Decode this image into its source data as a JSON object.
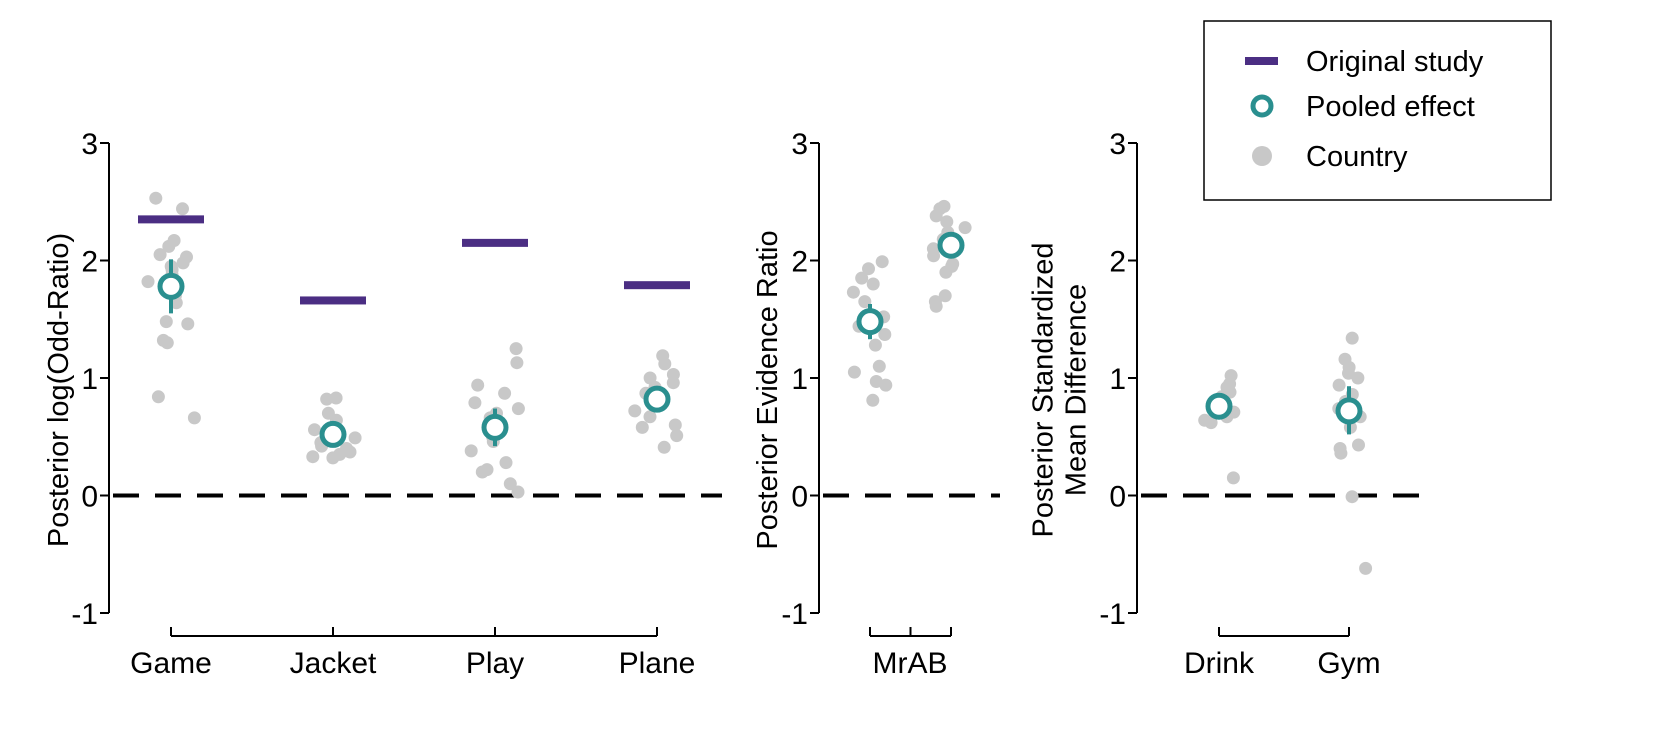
{
  "colors": {
    "original_study": "#4b2e83",
    "pooled_effect": "#2a8f8f",
    "country": "#c8c8c8",
    "axis": "#000000"
  },
  "legend": {
    "items": [
      {
        "label": "Original study",
        "marker": "bar"
      },
      {
        "label": "Pooled effect",
        "marker": "ring"
      },
      {
        "label": "Country",
        "marker": "dot"
      }
    ]
  },
  "chart_data": [
    {
      "type": "scatter",
      "ylabel": [
        "Posterior log(Odd-Ratio)"
      ],
      "ylim": [
        -1,
        3
      ],
      "yticks": [
        -1,
        0,
        1,
        2,
        3
      ],
      "reference_line": 0,
      "categories": [
        "Game",
        "Jacket",
        "Play",
        "Plane"
      ],
      "original_study": [
        2.35,
        1.66,
        2.15,
        1.79
      ],
      "pooled_effect": [
        {
          "mean": 1.78,
          "lower": 1.55,
          "upper": 2.01
        },
        {
          "mean": 0.52,
          "lower": 0.45,
          "upper": 0.6
        },
        {
          "mean": 0.58,
          "lower": 0.42,
          "upper": 0.74
        },
        {
          "mean": 0.82,
          "lower": 0.74,
          "upper": 0.9
        }
      ],
      "country": [
        [
          2.53,
          2.44,
          2.17,
          2.12,
          2.05,
          2.03,
          1.98,
          1.95,
          1.92,
          1.88,
          1.82,
          1.7,
          1.64,
          1.48,
          1.46,
          1.32,
          1.3,
          0.84,
          0.66
        ],
        [
          0.83,
          0.82,
          0.7,
          0.64,
          0.56,
          0.52,
          0.49,
          0.45,
          0.42,
          0.4,
          0.37,
          0.35,
          0.33,
          0.32
        ],
        [
          1.25,
          1.13,
          0.94,
          0.87,
          0.79,
          0.74,
          0.7,
          0.66,
          0.6,
          0.5,
          0.46,
          0.38,
          0.28,
          0.22,
          0.2,
          0.1,
          0.03
        ],
        [
          1.19,
          1.12,
          1.03,
          1.0,
          0.96,
          0.92,
          0.87,
          0.8,
          0.72,
          0.67,
          0.6,
          0.58,
          0.51,
          0.41
        ]
      ]
    },
    {
      "type": "scatter",
      "ylabel": [
        "Posterior Evidence Ratio"
      ],
      "ylim": [
        -1,
        3
      ],
      "yticks": [
        -1,
        0,
        1,
        2,
        3
      ],
      "reference_line": 0,
      "categories": [
        "MrAB"
      ],
      "bracket_points": 2,
      "pooled_effect": [
        {
          "mean": 1.48,
          "lower": 1.33,
          "upper": 1.63
        },
        {
          "mean": 2.13,
          "lower": 2.02,
          "upper": 2.24
        }
      ],
      "country": [
        [
          1.99,
          1.93,
          1.85,
          1.8,
          1.73,
          1.65,
          1.52,
          1.44,
          1.37,
          1.28,
          1.1,
          1.05,
          0.97,
          0.94,
          0.81
        ],
        [
          2.46,
          2.44,
          2.38,
          2.33,
          2.28,
          2.24,
          2.18,
          2.1,
          2.04,
          1.97,
          1.95,
          1.9,
          1.7,
          1.65,
          1.61
        ]
      ]
    },
    {
      "type": "scatter",
      "ylabel": [
        "Posterior Standardized",
        "Mean Difference"
      ],
      "ylim": [
        -1,
        3
      ],
      "yticks": [
        -1,
        0,
        1,
        2,
        3
      ],
      "reference_line": 0,
      "categories": [
        "Drink",
        "Gym"
      ],
      "pooled_effect": [
        {
          "mean": 0.76,
          "lower": 0.69,
          "upper": 0.83
        },
        {
          "mean": 0.72,
          "lower": 0.52,
          "upper": 0.93
        }
      ],
      "country": [
        [
          1.02,
          0.95,
          0.92,
          0.88,
          0.84,
          0.8,
          0.78,
          0.75,
          0.71,
          0.67,
          0.64,
          0.62,
          0.15
        ],
        [
          1.34,
          1.16,
          1.09,
          1.04,
          1.0,
          0.94,
          0.86,
          0.8,
          0.74,
          0.67,
          0.58,
          0.43,
          0.4,
          0.36,
          -0.01,
          -0.62
        ]
      ]
    }
  ]
}
